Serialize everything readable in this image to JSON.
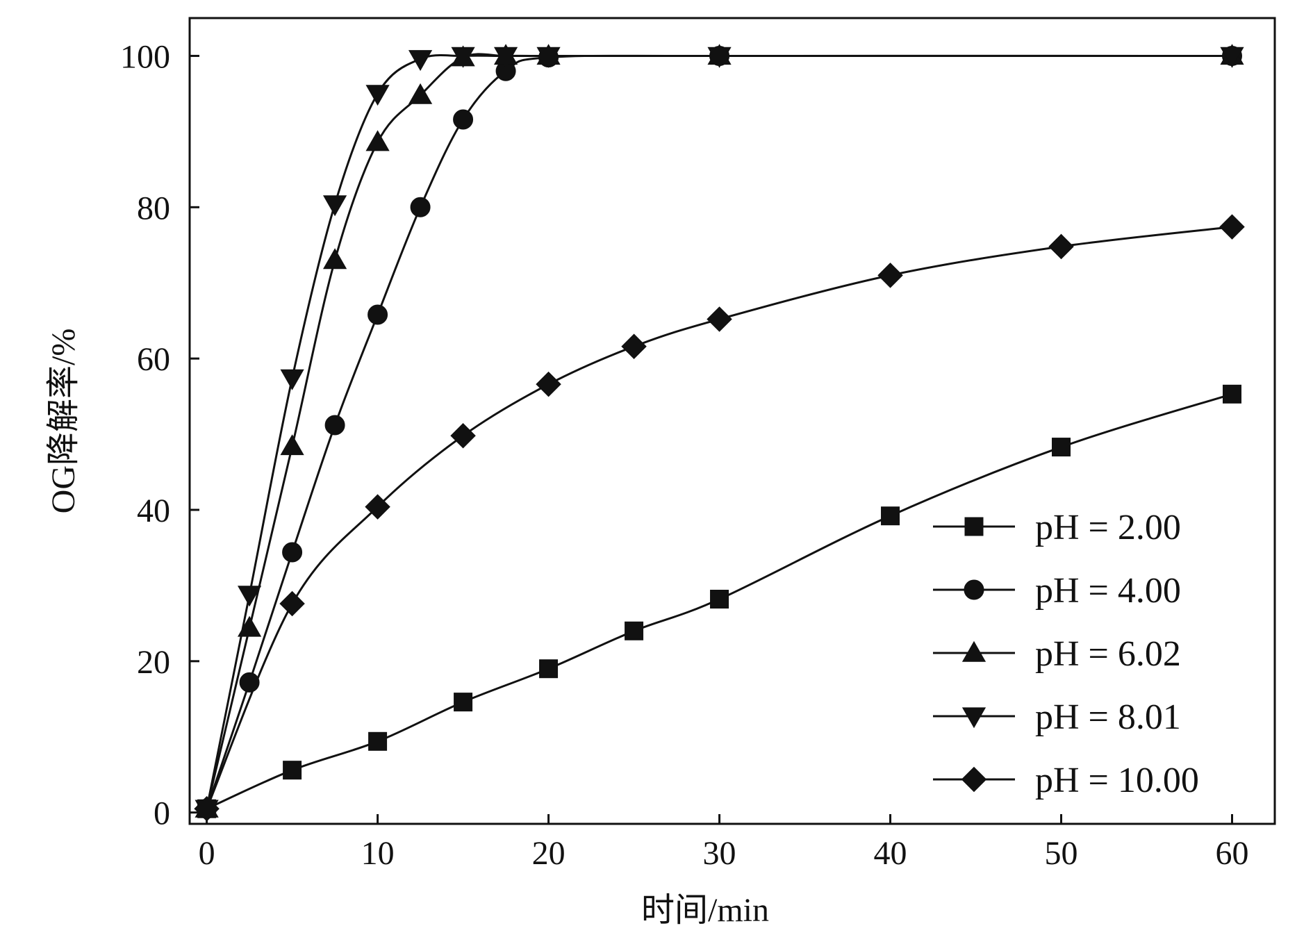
{
  "chart_data": {
    "type": "line",
    "xlabel": "时间/min",
    "ylabel": "OG降解率/%",
    "xlim": [
      -1,
      62.5
    ],
    "ylim": [
      -1.5,
      105
    ],
    "xticks": [
      0,
      10,
      20,
      30,
      40,
      50,
      60
    ],
    "yticks": [
      0,
      20,
      40,
      60,
      80,
      100
    ],
    "grid": false,
    "legend_position": "bottom-right",
    "line_color": "#111111",
    "series": [
      {
        "name": "pH = 2.00",
        "marker": "square",
        "x": [
          0,
          5,
          10,
          15,
          20,
          25,
          30,
          40,
          50,
          60
        ],
        "y": [
          0.5,
          5.6,
          9.4,
          14.6,
          19.0,
          24.0,
          28.2,
          39.2,
          48.3,
          55.3
        ]
      },
      {
        "name": "pH = 4.00",
        "marker": "circle",
        "x": [
          0,
          2.5,
          5,
          7.5,
          10,
          12.5,
          15,
          17.5,
          20,
          30,
          60
        ],
        "y": [
          0.5,
          17.2,
          34.4,
          51.2,
          65.8,
          80.0,
          91.6,
          98.0,
          99.8,
          100,
          100
        ]
      },
      {
        "name": "pH = 6.02",
        "marker": "triangle-up",
        "x": [
          0,
          2.5,
          5,
          7.5,
          10,
          12.5,
          15,
          17.5,
          20,
          30,
          60
        ],
        "y": [
          0.5,
          24.4,
          48.4,
          73.0,
          88.6,
          94.8,
          99.8,
          100,
          100,
          100,
          100
        ]
      },
      {
        "name": "pH = 8.01",
        "marker": "triangle-down",
        "x": [
          0,
          2.5,
          5,
          7.5,
          10,
          12.5,
          15,
          17.5,
          20,
          30,
          60
        ],
        "y": [
          0.5,
          28.8,
          57.4,
          80.4,
          95.0,
          99.6,
          100,
          100,
          100,
          100,
          100
        ]
      },
      {
        "name": "pH = 10.00",
        "marker": "diamond",
        "x": [
          0,
          5,
          10,
          15,
          20,
          25,
          30,
          40,
          50,
          60
        ],
        "y": [
          0.5,
          27.6,
          40.4,
          49.8,
          56.6,
          61.6,
          65.2,
          71.0,
          74.8,
          77.4
        ]
      }
    ]
  }
}
